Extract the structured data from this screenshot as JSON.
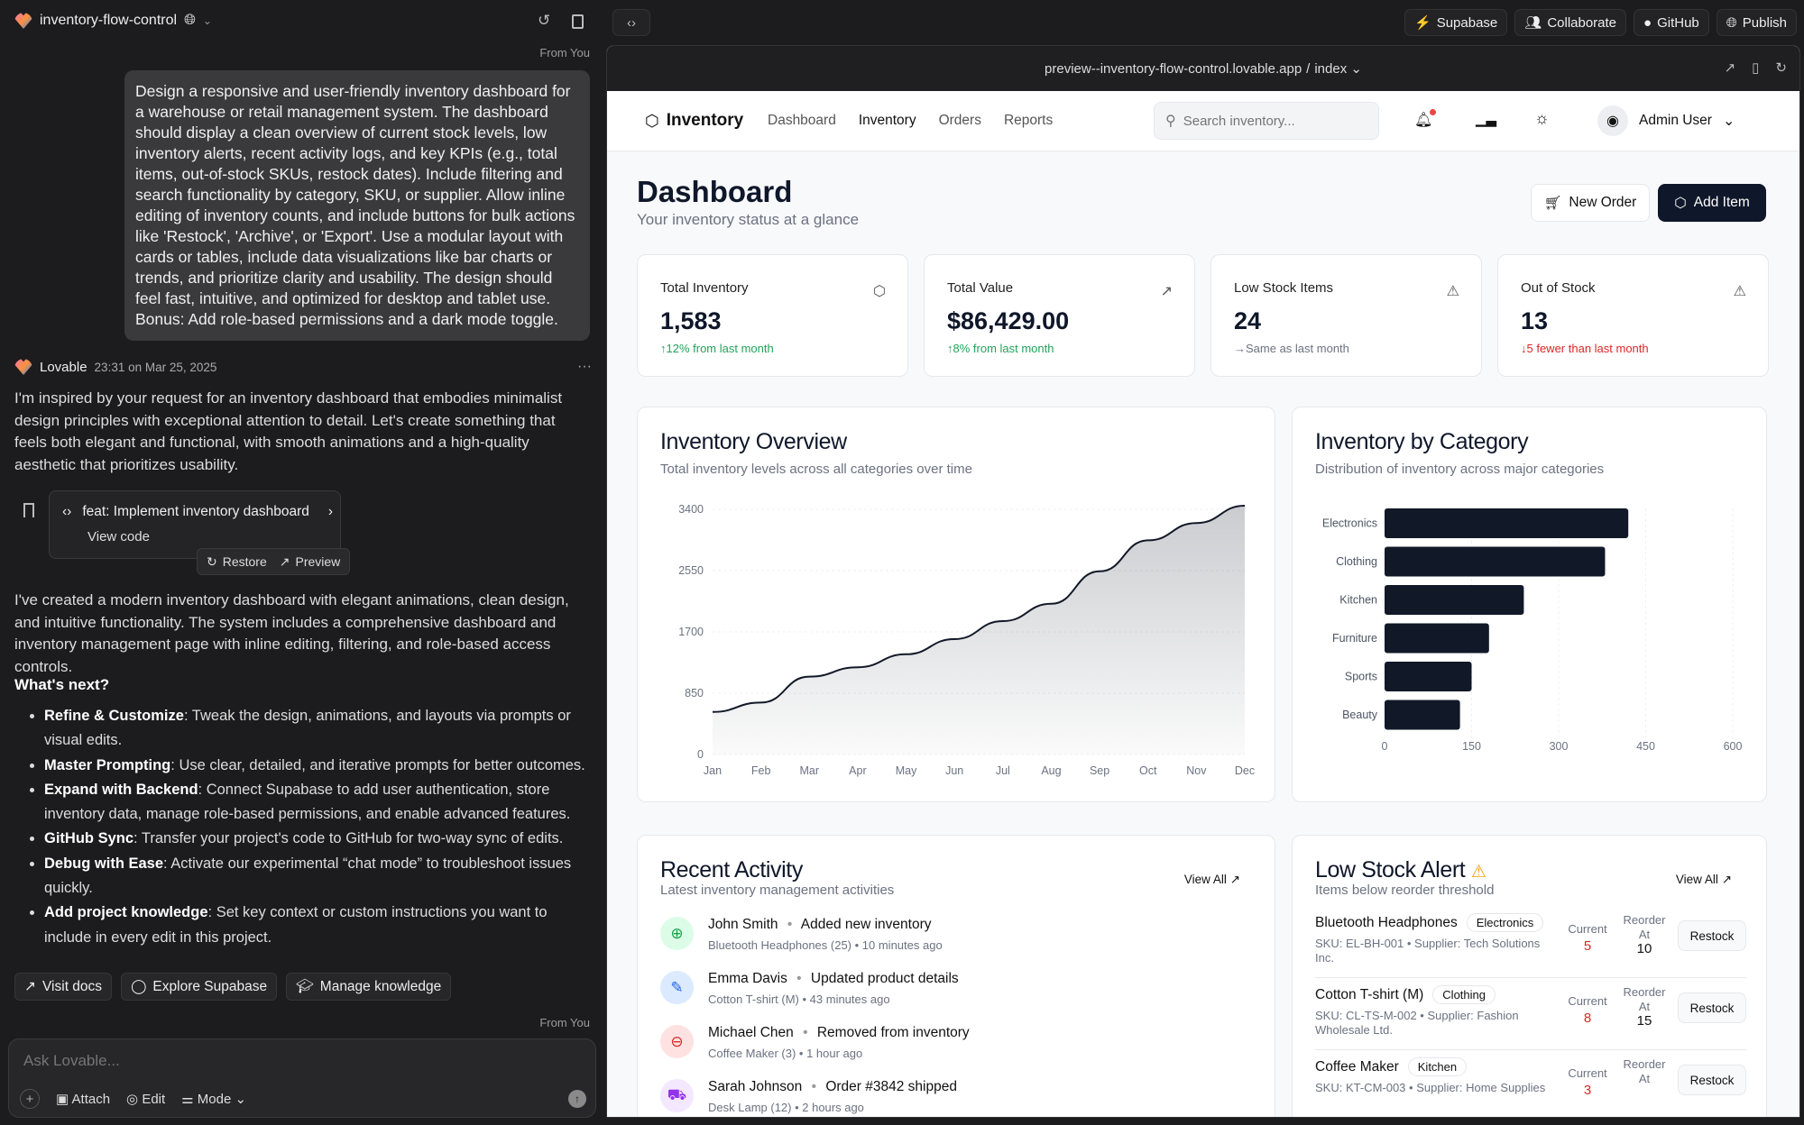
{
  "topbar": {
    "project": "inventory-flow-control",
    "buttons": [
      "Supabase",
      "Collaborate",
      "GitHub",
      "Publish"
    ]
  },
  "chat": {
    "from_you": "From You",
    "prompt": "Design a responsive and user-friendly inventory dashboard for a warehouse or retail management system. The dashboard should display a clean overview of current stock levels, low inventory alerts, recent activity logs, and key KPIs (e.g., total items, out-of-stock SKUs, restock dates). Include filtering and search functionality by category, SKU, or supplier. Allow inline editing of inventory counts, and include buttons for bulk actions like 'Restock', 'Archive', or 'Export'. Use a modular layout with cards or tables, include data visualizations like bar charts or trends, and prioritize clarity and usability. The design should feel fast, intuitive, and optimized for desktop and tablet use. Bonus: Add role-based permissions and a dark mode toggle.",
    "sender": "Lovable",
    "timestamp": "23:31 on Mar 25, 2025",
    "intro": "I'm inspired by your request for an inventory dashboard that embodies minimalist design principles with exceptional attention to detail. Let's create something that feels both elegant and functional, with smooth animations and a high-quality aesthetic that prioritizes usability.",
    "commit": {
      "title": "feat: Implement inventory dashboard",
      "view_code": "View code",
      "restore": "Restore",
      "preview": "Preview"
    },
    "summary": "I've created a modern inventory dashboard with elegant animations, clean design, and intuitive functionality. The system includes a comprehensive dashboard and inventory management page with inline editing, filtering, and role-based access controls.",
    "next_heading": "What's next?",
    "next": [
      {
        "b": "Refine & Customize",
        "t": ": Tweak the design, animations, and layouts via prompts or visual edits."
      },
      {
        "b": "Master Prompting",
        "t": ": Use clear, detailed, and iterative prompts for better outcomes."
      },
      {
        "b": "Expand with Backend",
        "t": ": Connect Supabase to add user authentication, store inventory data, manage role-based permissions, and enable advanced features."
      },
      {
        "b": "GitHub Sync",
        "t": ": Transfer your project's code to GitHub for two-way sync of edits."
      },
      {
        "b": "Debug with Ease",
        "t": ": Activate our experimental “chat mode” to troubleshoot issues quickly."
      },
      {
        "b": "Add project knowledge",
        "t": ": Set key context or custom instructions you want to include in every edit in this project."
      }
    ],
    "actions": [
      "Visit docs",
      "Explore Supabase",
      "Manage knowledge"
    ],
    "input_placeholder": "Ask Lovable...",
    "composer": {
      "attach": "Attach",
      "edit": "Edit",
      "mode": "Mode"
    }
  },
  "preview": {
    "url": "preview--inventory-flow-control.lovable.app",
    "route": "index"
  },
  "app": {
    "brand": "Inventory",
    "nav": [
      "Dashboard",
      "Inventory",
      "Orders",
      "Reports"
    ],
    "search_placeholder": "Search inventory...",
    "user": "Admin User",
    "title": "Dashboard",
    "subtitle": "Your inventory status at a glance",
    "new_order": "New Order",
    "add_item": "Add Item",
    "kpis": [
      {
        "label": "Total Inventory",
        "value": "1,583",
        "sub": "↑12% from last month",
        "color": "#22a35a",
        "icon": "package-icon"
      },
      {
        "label": "Total Value",
        "value": "$86,429.00",
        "sub": "↑8% from last month",
        "color": "#22a35a",
        "icon": "trending-up-icon"
      },
      {
        "label": "Low Stock Items",
        "value": "24",
        "sub": "→Same as last month",
        "color": "#6b7280",
        "icon": "alert-triangle-icon"
      },
      {
        "label": "Out of Stock",
        "value": "13",
        "sub": "↓5 fewer than last month",
        "color": "#dc2626",
        "icon": "alert-triangle-icon"
      }
    ],
    "recent": {
      "title": "Recent Activity",
      "subtitle": "Latest inventory management activities",
      "view_all": "View All",
      "items": [
        {
          "user": "John Smith",
          "action": "Added new inventory",
          "detail": "Bluetooth Headphones (25) • 10 minutes ago",
          "bg": "#dcfce7",
          "fg": "#16a34a",
          "icon": "⊕"
        },
        {
          "user": "Emma Davis",
          "action": "Updated product details",
          "detail": "Cotton T-shirt (M) • 43 minutes ago",
          "bg": "#dbeafe",
          "fg": "#2563eb",
          "icon": "✎"
        },
        {
          "user": "Michael Chen",
          "action": "Removed from inventory",
          "detail": "Coffee Maker (3) • 1 hour ago",
          "bg": "#fee2e2",
          "fg": "#dc2626",
          "icon": "⊖"
        },
        {
          "user": "Sarah Johnson",
          "action": "Order #3842 shipped",
          "detail": "Desk Lamp (12) • 2 hours ago",
          "bg": "#f3e8ff",
          "fg": "#9333ea",
          "icon": "⛟"
        }
      ]
    },
    "low_stock": {
      "title": "Low Stock Alert",
      "subtitle": "Items below reorder threshold",
      "view_all": "View All",
      "current_label": "Current",
      "reorder_label": "Reorder At",
      "restock": "Restock",
      "items": [
        {
          "name": "Bluetooth Headphones",
          "category": "Electronics",
          "sku": "SKU: EL-BH-001 • Supplier: Tech Solutions Inc.",
          "current": "5",
          "reorder": "10"
        },
        {
          "name": "Cotton T-shirt (M)",
          "category": "Clothing",
          "sku": "SKU: CL-TS-M-002 • Supplier: Fashion Wholesale Ltd.",
          "current": "8",
          "reorder": "15"
        },
        {
          "name": "Coffee Maker",
          "category": "Kitchen",
          "sku": "SKU: KT-CM-003 • Supplier: Home Supplies",
          "current": "3",
          "reorder": ""
        }
      ]
    }
  },
  "chart_data": [
    {
      "type": "area",
      "title": "Inventory Overview",
      "subtitle": "Total inventory levels across all categories over time",
      "categories": [
        "Jan",
        "Feb",
        "Mar",
        "Apr",
        "May",
        "Jun",
        "Jul",
        "Aug",
        "Sep",
        "Oct",
        "Nov",
        "Dec"
      ],
      "values": [
        590,
        720,
        1080,
        1210,
        1390,
        1600,
        1850,
        2090,
        2540,
        2970,
        3210,
        3450
      ],
      "yticks": [
        0,
        850,
        1700,
        2550,
        3400
      ],
      "ylim": [
        0,
        3400
      ],
      "grid": true,
      "color": "#111827"
    },
    {
      "type": "bar",
      "orientation": "horizontal",
      "title": "Inventory by Category",
      "subtitle": "Distribution of inventory across major categories",
      "categories": [
        "Electronics",
        "Clothing",
        "Kitchen",
        "Furniture",
        "Sports",
        "Beauty"
      ],
      "values": [
        420,
        380,
        240,
        180,
        150,
        130
      ],
      "xticks": [
        0,
        150,
        300,
        450,
        600
      ],
      "xlim": [
        0,
        600
      ],
      "color": "#111827"
    }
  ]
}
